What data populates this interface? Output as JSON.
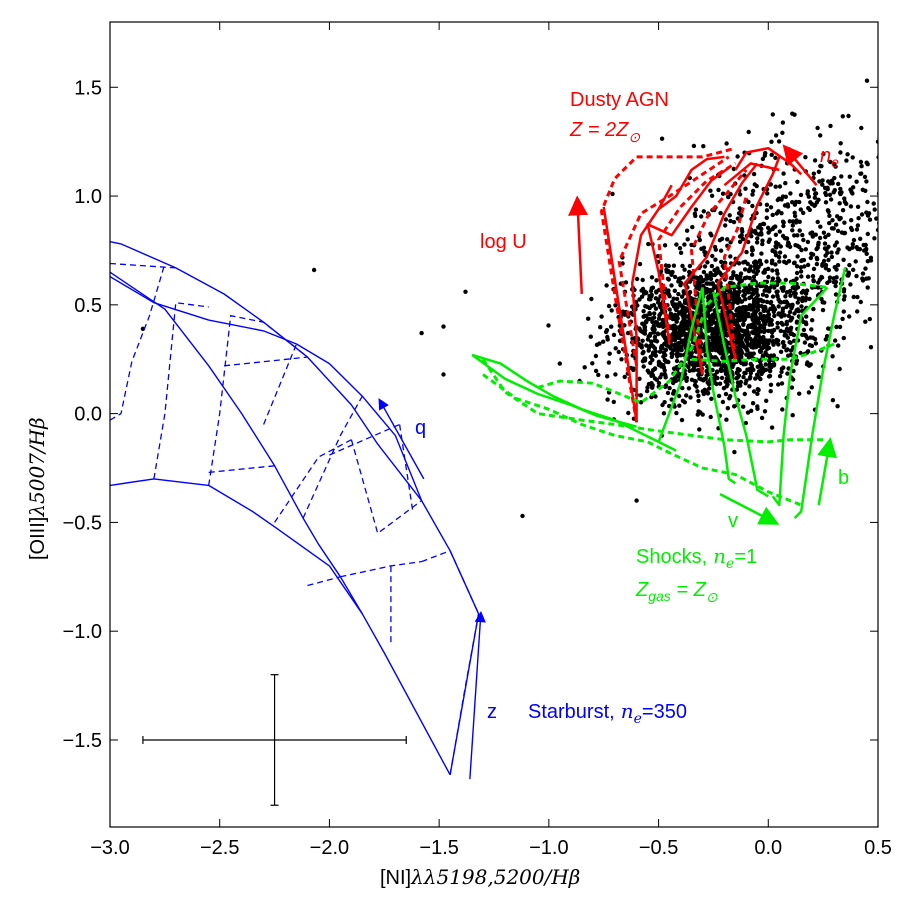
{
  "chart_data": {
    "type": "scatter",
    "xlabel": "[NI]λλ5198,5200/Hβ",
    "ylabel": "[OIII]λ5007/Hβ",
    "xlim": [
      -3.0,
      0.5
    ],
    "ylim": [
      -1.9,
      1.8
    ],
    "xticks": [
      "−3.0",
      "−2.5",
      "−2.0",
      "−1.5",
      "−1.0",
      "−0.5",
      "0.0",
      "0.5"
    ],
    "xtick_values": [
      -3.0,
      -2.5,
      -2.0,
      -1.5,
      -1.0,
      -0.5,
      0.0,
      0.5
    ],
    "yticks": [
      "−1.5",
      "−1.0",
      "−0.5",
      "0.0",
      "0.5",
      "1.0",
      "1.5"
    ],
    "ytick_values": [
      -1.5,
      -1.0,
      -0.5,
      0.0,
      0.5,
      1.0,
      1.5
    ],
    "grid": false,
    "colors": {
      "points": "#000000",
      "starburst": "#0000ff",
      "agn": "#ff0000",
      "shocks": "#00ee00"
    },
    "outliers": [
      [
        -0.71,
        1.01
      ],
      [
        -2.07,
        0.66
      ],
      [
        -2.85,
        0.39
      ],
      [
        -1.38,
        0.56
      ],
      [
        -1.48,
        0.4
      ],
      [
        -1.48,
        0.18
      ],
      [
        -1.58,
        0.37
      ],
      [
        -1.12,
        -0.47
      ],
      [
        -0.6,
        -0.4
      ],
      [
        0.45,
        1.53
      ],
      [
        0.5,
        1.25
      ],
      [
        -0.95,
        0.23
      ],
      [
        -0.86,
        0.15
      ]
    ],
    "cloud": {
      "center": [
        -0.25,
        0.38
      ],
      "spread": [
        0.2,
        0.16
      ],
      "count": 2600
    },
    "errorbar": {
      "x": -2.25,
      "y": -1.5,
      "x_range": [
        -2.85,
        -1.65
      ],
      "y_range": [
        -1.8,
        -1.2
      ]
    },
    "starburst_grid": {
      "solid": [
        [
          [
            -3.0,
            0.79
          ],
          [
            -2.95,
            0.78
          ],
          [
            -2.7,
            0.67
          ],
          [
            -2.48,
            0.55
          ],
          [
            -2.3,
            0.42
          ],
          [
            -2.1,
            0.26
          ],
          [
            -1.9,
            0.04
          ],
          [
            -1.78,
            -0.14
          ],
          [
            -1.58,
            -0.4
          ],
          [
            -1.45,
            -0.63
          ],
          [
            -1.32,
            -0.92
          ],
          [
            -1.45,
            -1.66
          ]
        ],
        [
          [
            -3.0,
            0.63
          ],
          [
            -2.8,
            0.51
          ],
          [
            -2.55,
            0.43
          ],
          [
            -2.3,
            0.38
          ],
          [
            -2.15,
            0.32
          ],
          [
            -2.0,
            0.23
          ],
          [
            -1.85,
            0.08
          ],
          [
            -1.7,
            -0.1
          ],
          [
            -1.58,
            -0.4
          ]
        ],
        [
          [
            -3.0,
            0.65
          ],
          [
            -2.75,
            0.48
          ],
          [
            -2.55,
            0.22
          ],
          [
            -2.4,
            0.0
          ],
          [
            -2.25,
            -0.24
          ],
          [
            -2.12,
            -0.48
          ],
          [
            -2.05,
            -0.6
          ],
          [
            -1.95,
            -0.75
          ],
          [
            -1.85,
            -0.92
          ],
          [
            -1.75,
            -1.1
          ],
          [
            -1.45,
            -1.66
          ]
        ],
        [
          [
            -3.0,
            -0.33
          ],
          [
            -2.8,
            -0.3
          ],
          [
            -2.55,
            -0.33
          ],
          [
            -2.35,
            -0.45
          ],
          [
            -2.25,
            -0.52
          ],
          [
            -2.0,
            -0.7
          ],
          [
            -1.85,
            -0.92
          ]
        ]
      ],
      "dashed": [
        [
          [
            -3.0,
            -0.03
          ],
          [
            -2.95,
            0.0
          ],
          [
            -2.9,
            0.24
          ],
          [
            -2.82,
            0.45
          ],
          [
            -2.75,
            0.69
          ]
        ],
        [
          [
            -3.0,
            0.69
          ],
          [
            -2.7,
            0.67
          ]
        ],
        [
          [
            -2.8,
            -0.3
          ],
          [
            -2.75,
            0.0
          ],
          [
            -2.7,
            0.51
          ],
          [
            -2.55,
            0.49
          ]
        ],
        [
          [
            -2.55,
            -0.33
          ],
          [
            -2.5,
            0.0
          ],
          [
            -2.45,
            0.45
          ],
          [
            -2.3,
            0.42
          ],
          [
            -2.1,
            0.26
          ]
        ],
        [
          [
            -2.55,
            -0.27
          ],
          [
            -2.25,
            -0.24
          ]
        ],
        [
          [
            -2.48,
            0.22
          ],
          [
            -2.1,
            0.26
          ]
        ],
        [
          [
            -2.3,
            -0.05
          ],
          [
            -2.15,
            0.32
          ]
        ],
        [
          [
            -2.25,
            -0.5
          ],
          [
            -2.05,
            -0.2
          ],
          [
            -1.9,
            -0.12
          ]
        ],
        [
          [
            -2.12,
            -0.48
          ],
          [
            -1.95,
            -0.1
          ],
          [
            -1.85,
            0.08
          ]
        ],
        [
          [
            -2.1,
            -0.79
          ],
          [
            -1.95,
            -0.75
          ]
        ],
        [
          [
            -2.0,
            -0.19
          ],
          [
            -1.68,
            -0.05
          ]
        ],
        [
          [
            -1.95,
            -0.75
          ],
          [
            -1.72,
            -0.7
          ],
          [
            -1.58,
            -0.68
          ]
        ],
        [
          [
            -1.9,
            -0.12
          ],
          [
            -1.78,
            -0.55
          ],
          [
            -1.58,
            -0.4
          ]
        ],
        [
          [
            -1.72,
            -1.05
          ],
          [
            -1.72,
            -0.7
          ]
        ],
        [
          [
            -1.68,
            -0.05
          ],
          [
            -1.65,
            -0.25
          ],
          [
            -1.62,
            -0.45
          ]
        ],
        [
          [
            -1.58,
            -0.68
          ],
          [
            -1.45,
            -0.63
          ],
          [
            -1.32,
            -0.92
          ]
        ],
        [
          [
            -1.45,
            -1.66
          ],
          [
            -1.38,
            -1.25
          ],
          [
            -1.32,
            -0.92
          ]
        ]
      ],
      "arrows": [
        {
          "from": [
            -1.57,
            -0.3
          ],
          "to": [
            -1.77,
            0.06
          ]
        },
        {
          "from": [
            -1.36,
            -1.68
          ],
          "to": [
            -1.31,
            -0.92
          ]
        }
      ]
    },
    "agn_grid": {
      "solid": [
        [
          [
            -0.6,
            -0.04
          ],
          [
            -0.65,
            0.3
          ],
          [
            -0.7,
            0.62
          ],
          [
            -0.75,
            0.95
          ]
        ],
        [
          [
            -0.6,
            -0.04
          ],
          [
            -0.6,
            0.35
          ],
          [
            -0.62,
            0.6
          ],
          [
            -0.58,
            0.82
          ],
          [
            -0.5,
            0.94
          ],
          [
            -0.44,
            1.05
          ]
        ],
        [
          [
            -0.45,
            0.32
          ],
          [
            -0.5,
            0.65
          ],
          [
            -0.55,
            0.87
          ],
          [
            -0.44,
            0.82
          ],
          [
            -0.35,
            0.95
          ],
          [
            -0.26,
            1.07
          ],
          [
            -0.18,
            1.13
          ]
        ],
        [
          [
            -0.3,
            0.18
          ],
          [
            -0.38,
            0.6
          ],
          [
            -0.28,
            0.72
          ],
          [
            -0.2,
            0.92
          ],
          [
            -0.12,
            1.06
          ],
          [
            -0.05,
            1.15
          ]
        ],
        [
          [
            -0.15,
            0.25
          ],
          [
            -0.23,
            0.6
          ],
          [
            -0.12,
            0.74
          ],
          [
            -0.05,
            0.96
          ],
          [
            0.02,
            1.1
          ],
          [
            0.05,
            1.18
          ]
        ],
        [
          [
            -0.15,
            1.12
          ],
          [
            -0.1,
            1.2
          ],
          [
            0.0,
            1.22
          ],
          [
            0.1,
            1.15
          ],
          [
            0.15,
            1.1
          ]
        ],
        [
          [
            -0.2,
            1.05
          ],
          [
            -0.08,
            1.15
          ],
          [
            0.05,
            1.12
          ]
        ],
        [
          [
            -0.5,
            0.94
          ],
          [
            -0.42,
            1.0
          ],
          [
            -0.35,
            1.12
          ],
          [
            -0.28,
            1.17
          ],
          [
            -0.2,
            1.18
          ]
        ]
      ],
      "dashed": [
        [
          [
            -0.6,
            -0.04
          ],
          [
            -0.7,
            0.55
          ],
          [
            -0.76,
            0.93
          ],
          [
            -0.7,
            1.08
          ],
          [
            -0.6,
            1.18
          ],
          [
            -0.45,
            1.18
          ],
          [
            -0.3,
            1.18
          ],
          [
            -0.15,
            1.22
          ]
        ],
        [
          [
            -0.6,
            0.22
          ],
          [
            -0.68,
            0.7
          ],
          [
            -0.58,
            0.92
          ],
          [
            -0.45,
            1.0
          ],
          [
            -0.3,
            1.1
          ],
          [
            -0.18,
            1.18
          ]
        ],
        [
          [
            -0.45,
            0.34
          ],
          [
            -0.5,
            0.8
          ],
          [
            -0.4,
            0.95
          ],
          [
            -0.28,
            1.07
          ],
          [
            -0.15,
            1.15
          ]
        ],
        [
          [
            -0.3,
            0.18
          ],
          [
            -0.35,
            0.75
          ],
          [
            -0.27,
            0.92
          ],
          [
            -0.2,
            1.0
          ],
          [
            -0.1,
            1.12
          ]
        ],
        [
          [
            -0.15,
            0.25
          ],
          [
            -0.2,
            0.72
          ],
          [
            -0.14,
            0.85
          ],
          [
            -0.1,
            1.0
          ]
        ]
      ],
      "arrows": [
        {
          "from": [
            -0.85,
            0.55
          ],
          "to": [
            -0.87,
            0.98
          ]
        },
        {
          "from": [
            0.22,
            1.05
          ],
          "to": [
            0.08,
            1.22
          ]
        }
      ]
    },
    "shock_grid": {
      "solid": [
        [
          [
            -1.35,
            0.27
          ],
          [
            -1.22,
            0.23
          ],
          [
            -1.1,
            0.15
          ],
          [
            -0.98,
            0.08
          ],
          [
            -0.85,
            0.02
          ],
          [
            -0.7,
            -0.03
          ],
          [
            -0.6,
            -0.08
          ],
          [
            -0.5,
            -0.13
          ],
          [
            -0.42,
            -0.17
          ]
        ],
        [
          [
            -1.35,
            0.27
          ],
          [
            -1.2,
            0.16
          ],
          [
            -1.05,
            0.09
          ],
          [
            -0.9,
            0.04
          ],
          [
            -0.78,
            -0.01
          ],
          [
            -0.6,
            -0.06
          ]
        ],
        [
          [
            -0.5,
            -0.13
          ],
          [
            -0.4,
            0.14
          ],
          [
            -0.35,
            0.39
          ],
          [
            -0.3,
            0.58
          ]
        ],
        [
          [
            -0.3,
            0.58
          ],
          [
            -0.28,
            0.3
          ],
          [
            -0.25,
            0.1
          ],
          [
            -0.2,
            -0.15
          ],
          [
            -0.18,
            -0.3
          ],
          [
            -0.15,
            -0.32
          ]
        ],
        [
          [
            -0.25,
            0.56
          ],
          [
            -0.2,
            0.31
          ],
          [
            -0.15,
            0.08
          ],
          [
            -0.1,
            -0.1
          ],
          [
            -0.05,
            -0.35
          ],
          [
            0.0,
            -0.38
          ]
        ],
        [
          [
            0.35,
            0.67
          ],
          [
            0.3,
            0.45
          ],
          [
            0.25,
            0.2
          ],
          [
            0.2,
            -0.1
          ],
          [
            0.15,
            -0.45
          ],
          [
            0.12,
            -0.48
          ]
        ],
        [
          [
            0.27,
            0.58
          ],
          [
            0.15,
            0.45
          ],
          [
            0.1,
            0.18
          ],
          [
            0.07,
            -0.1
          ],
          [
            0.05,
            -0.42
          ],
          [
            0.02,
            -0.38
          ]
        ]
      ],
      "dashed": [
        [
          [
            -1.3,
            0.25
          ],
          [
            -1.2,
            0.1
          ],
          [
            -1.05,
            0.0
          ],
          [
            -0.85,
            -0.03
          ],
          [
            -0.7,
            -0.05
          ],
          [
            -0.5,
            -0.08
          ],
          [
            -0.35,
            -0.1
          ],
          [
            -0.2,
            -0.12
          ],
          [
            0.0,
            -0.13
          ],
          [
            0.1,
            -0.12
          ],
          [
            0.25,
            -0.12
          ]
        ],
        [
          [
            -1.3,
            0.18
          ],
          [
            -1.15,
            0.07
          ],
          [
            -1.0,
            0.02
          ],
          [
            -0.85,
            -0.05
          ],
          [
            -0.7,
            -0.1
          ],
          [
            -0.55,
            -0.13
          ],
          [
            -0.45,
            -0.18
          ],
          [
            -0.3,
            -0.25
          ],
          [
            -0.15,
            -0.28
          ],
          [
            0.0,
            -0.36
          ],
          [
            0.15,
            -0.42
          ]
        ],
        [
          [
            -1.05,
            0.12
          ],
          [
            -0.95,
            0.15
          ],
          [
            -0.8,
            0.14
          ],
          [
            -0.7,
            0.1
          ],
          [
            -0.58,
            0.05
          ],
          [
            -0.45,
            0.15
          ],
          [
            -0.35,
            0.3
          ],
          [
            -0.28,
            0.5
          ],
          [
            -0.2,
            0.58
          ],
          [
            -0.05,
            0.6
          ],
          [
            0.1,
            0.6
          ],
          [
            0.27,
            0.58
          ]
        ],
        [
          [
            -0.35,
            0.25
          ],
          [
            -0.2,
            0.24
          ],
          [
            -0.05,
            0.25
          ],
          [
            0.1,
            0.25
          ],
          [
            0.2,
            0.28
          ],
          [
            0.3,
            0.32
          ]
        ]
      ],
      "arrows": [
        {
          "from": [
            -0.22,
            -0.37
          ],
          "to": [
            0.03,
            -0.5
          ]
        },
        {
          "from": [
            0.23,
            -0.42
          ],
          "to": [
            0.28,
            -0.13
          ]
        }
      ]
    },
    "annotations": {
      "q": "q",
      "z": "z",
      "starburst_prefix": "Starburst,",
      "starburst_ne": "n",
      "starburst_sub": "e",
      "starburst_suffix": "=350",
      "agn_title": "Dusty AGN",
      "agn_Z": "Z = 2Z",
      "agn_sun": "⊙",
      "agn_logu": "log U",
      "agn_ne": "n",
      "agn_ne_sub": "e",
      "shock_prefix": "Shocks,",
      "shock_ne": "n",
      "shock_ne_sub": "e",
      "shock_suffix": "=1",
      "shock_Z": "Z",
      "shock_Z_sub": "gas",
      "shock_eq": " = Z",
      "shock_sun": "⊙",
      "v": "v",
      "b": "b"
    },
    "axis_label_parts": {
      "x_bracket": "[NI]",
      "x_math": "λλ5198,5200/Hβ",
      "y_bracket": "[OIII]",
      "y_math": "λ5007/Hβ"
    }
  }
}
